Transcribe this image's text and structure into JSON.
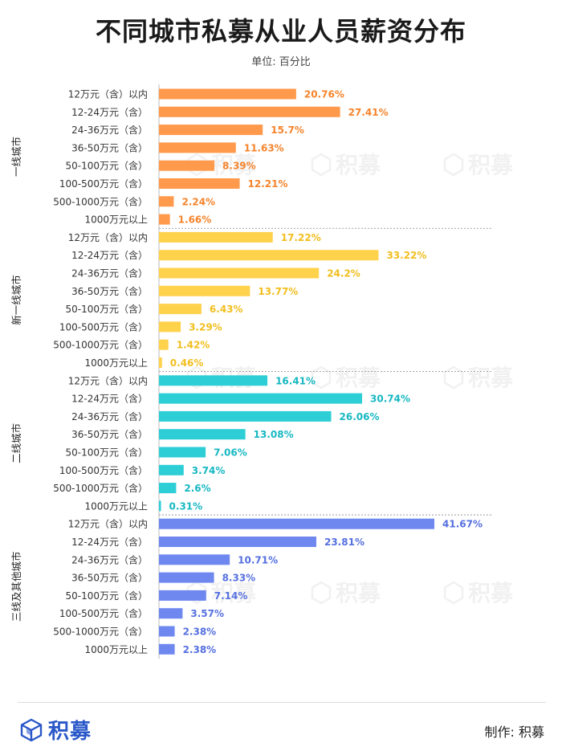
{
  "title": "不同城市私募从业人员薪资分布",
  "subtitle": "单位: 百分比",
  "footer": {
    "logo_text": "积募",
    "credit": "制作: 积募"
  },
  "watermark": "积募",
  "colors": {
    "一线城市": "#FF9A4C",
    "新一线城市": "#FFD24C",
    "二线城市": "#2ECED6",
    "三线及其他城市": "#6E88F0"
  },
  "chart_data": {
    "type": "bar",
    "orientation": "horizontal",
    "categories": [
      "12万元（含）以内",
      "12-24万元（含）",
      "24-36万元（含）",
      "36-50万元（含）",
      "50-100万元（含）",
      "100-500万元（含）",
      "500-1000万元（含）",
      "1000万元以上"
    ],
    "groups": [
      {
        "name": "一线城市",
        "values": [
          20.76,
          27.41,
          15.7,
          11.63,
          8.39,
          12.21,
          2.24,
          1.66
        ]
      },
      {
        "name": "新一线城市",
        "values": [
          17.22,
          33.22,
          24.2,
          13.77,
          6.43,
          3.29,
          1.42,
          0.46
        ]
      },
      {
        "name": "二线城市",
        "values": [
          16.41,
          30.74,
          26.06,
          13.08,
          7.06,
          3.74,
          2.6,
          0.31
        ]
      },
      {
        "name": "三线及其他城市",
        "values": [
          41.67,
          23.81,
          10.71,
          8.33,
          7.14,
          3.57,
          2.38,
          2.38
        ]
      }
    ],
    "xlim": [
      0,
      41.67
    ],
    "grid": false,
    "data_labels": true
  }
}
